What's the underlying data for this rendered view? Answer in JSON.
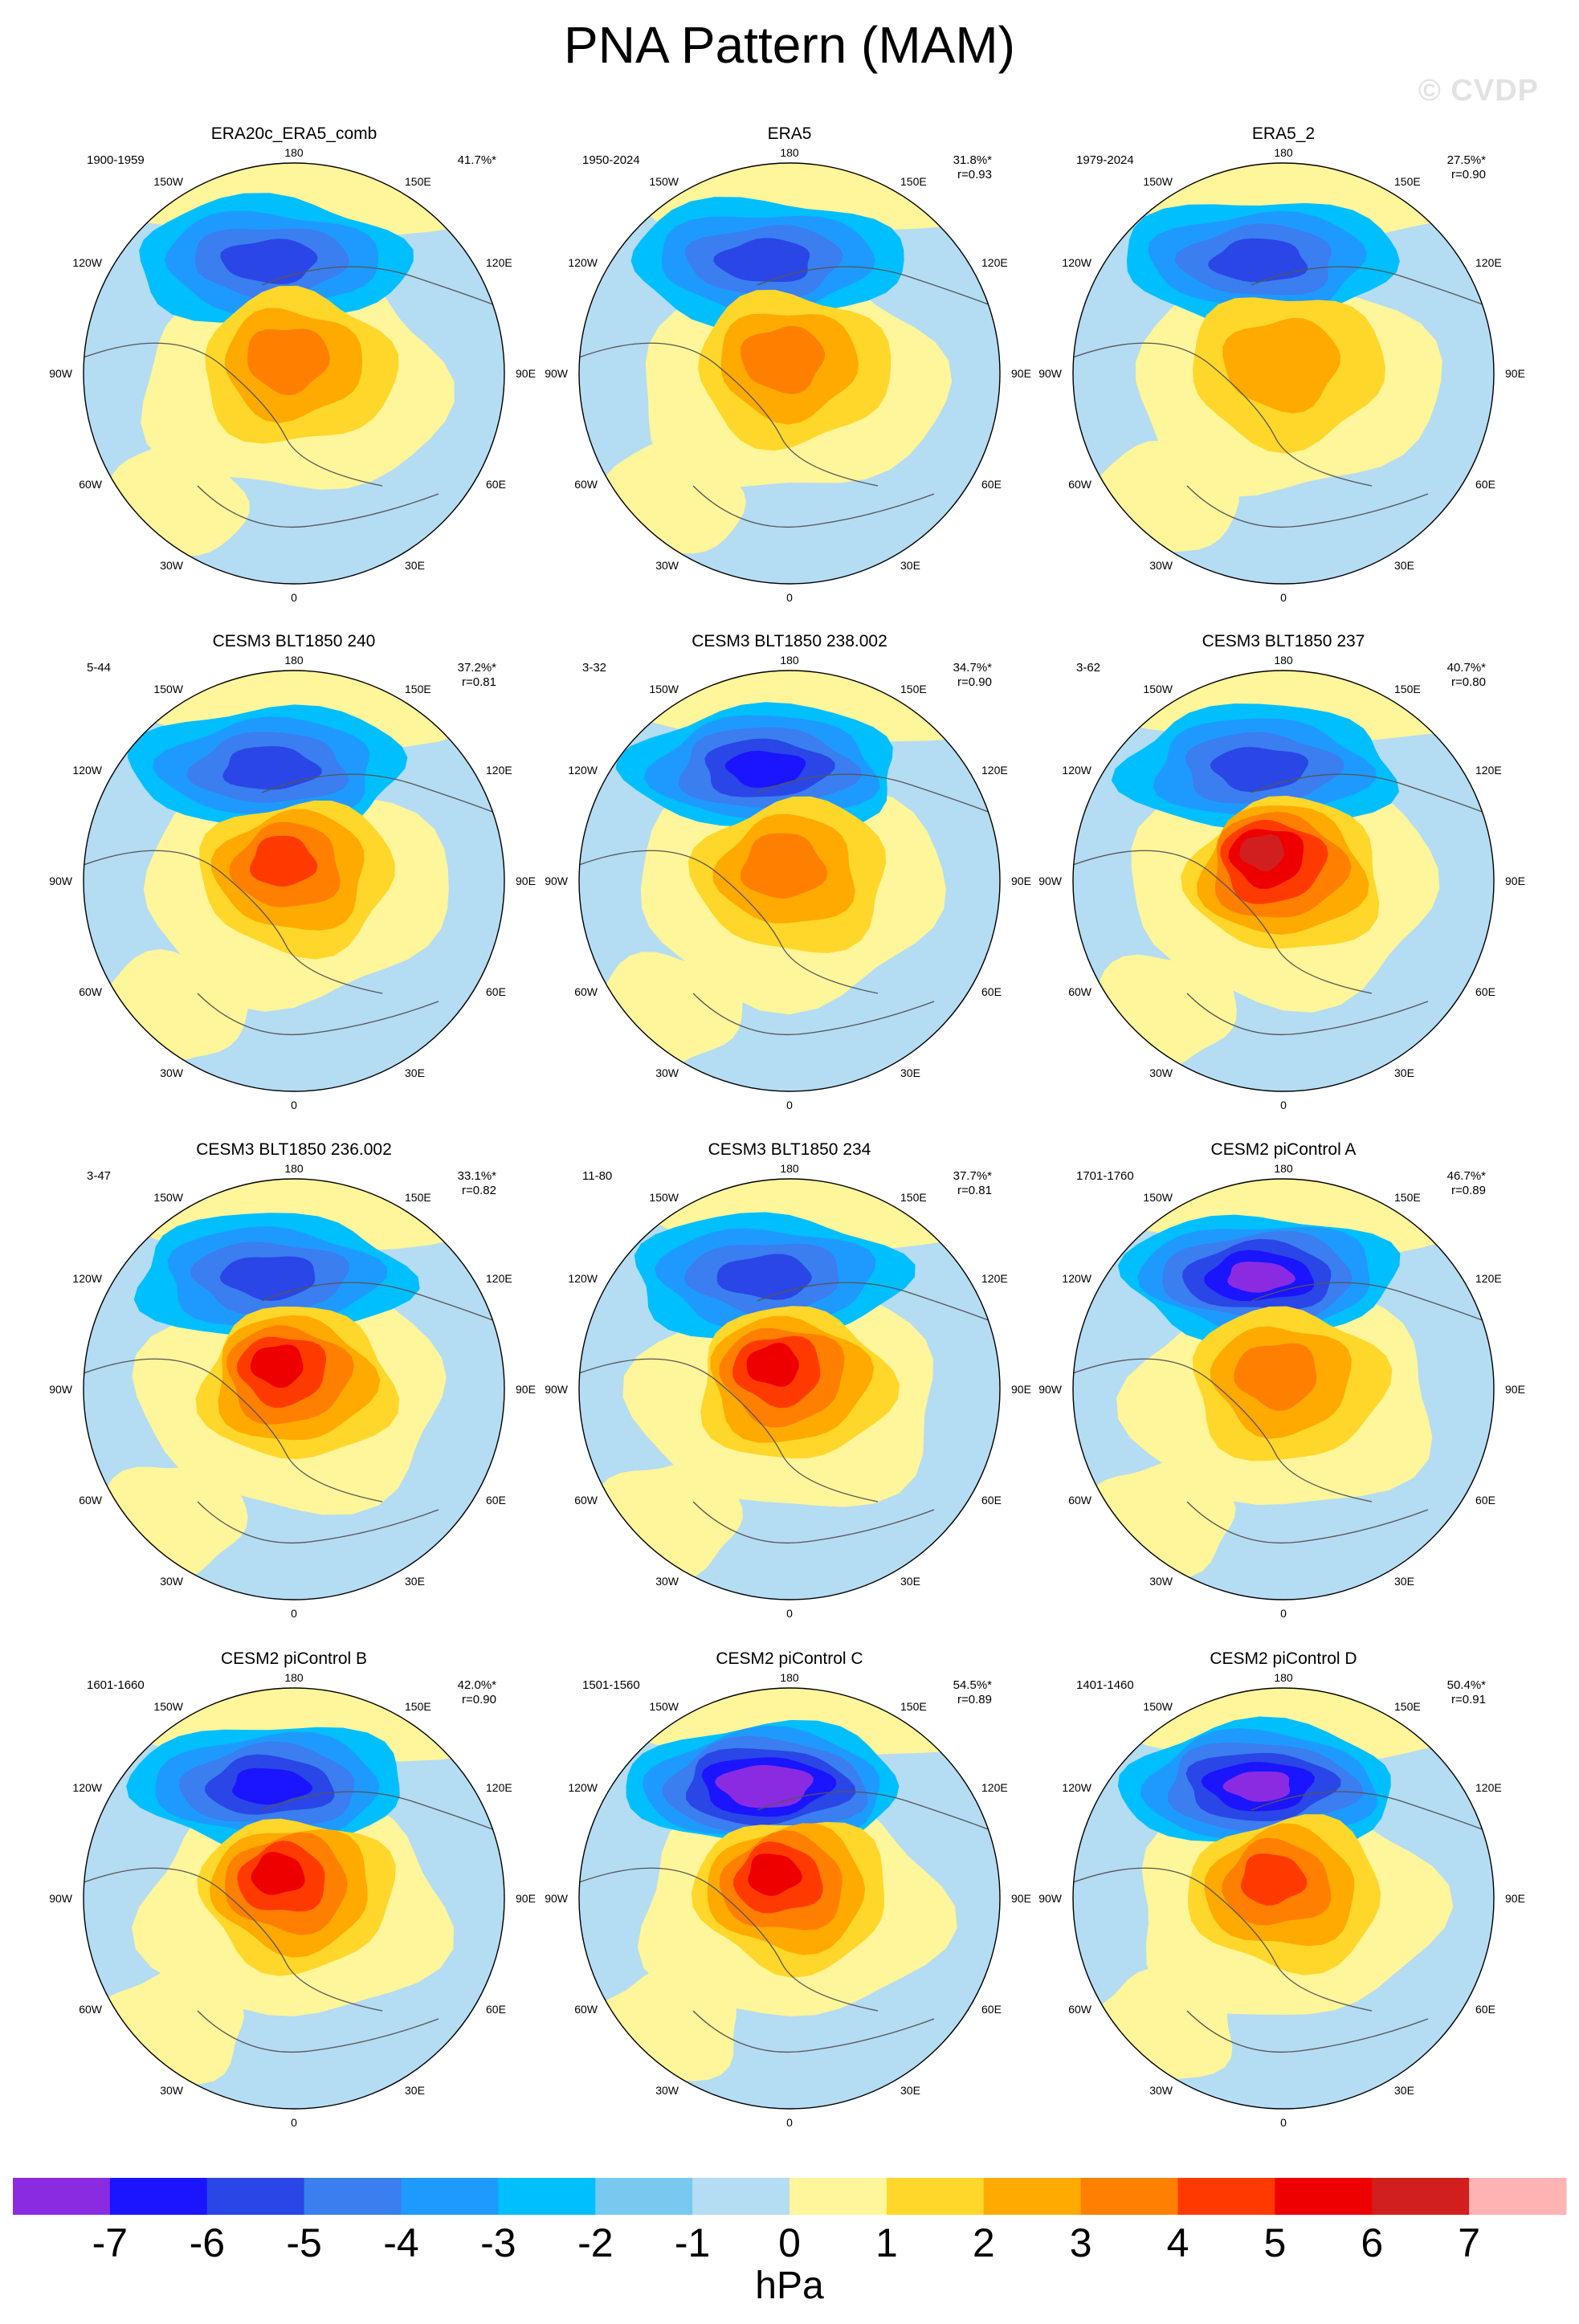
{
  "title": "PNA Pattern (MAM)",
  "watermark": "© CVDP",
  "longitude_labels": [
    "180",
    "150E",
    "120E",
    "90E",
    "60E",
    "30E",
    "0",
    "30W",
    "60W",
    "90W",
    "120W",
    "150W"
  ],
  "panels": [
    {
      "name": "ERA20c_ERA5_comb",
      "period": "1900-1959",
      "pct": "41.7%*",
      "r": "",
      "low": -4,
      "high": 3
    },
    {
      "name": "ERA5",
      "period": "1950-2024",
      "pct": "31.8%*",
      "r": "r=0.93",
      "low": -4,
      "high": 3
    },
    {
      "name": "ERA5_2",
      "period": "1979-2024",
      "pct": "27.5%*",
      "r": "r=0.90",
      "low": -4,
      "high": 2
    },
    {
      "name": "CESM3 BLT1850 240",
      "period": "5-44",
      "pct": "37.2%*",
      "r": "r=0.81",
      "low": -4,
      "high": 4
    },
    {
      "name": "CESM3 BLT1850 238.002",
      "period": "3-32",
      "pct": "34.7%*",
      "r": "r=0.90",
      "low": -5,
      "high": 3
    },
    {
      "name": "CESM3 BLT1850 237",
      "period": "3-62",
      "pct": "40.7%*",
      "r": "r=0.80",
      "low": -4,
      "high": 6
    },
    {
      "name": "CESM3 BLT1850 236.002",
      "period": "3-47",
      "pct": "33.1%*",
      "r": "r=0.82",
      "low": -4,
      "high": 5
    },
    {
      "name": "CESM3 BLT1850 234",
      "period": "11-80",
      "pct": "37.7%*",
      "r": "r=0.81",
      "low": -4,
      "high": 5
    },
    {
      "name": "CESM2 piControl A",
      "period": "1701-1760",
      "pct": "46.7%*",
      "r": "r=0.89",
      "low": -6,
      "high": 3
    },
    {
      "name": "CESM2 piControl B",
      "period": "1601-1660",
      "pct": "42.0%*",
      "r": "r=0.90",
      "low": -5,
      "high": 5
    },
    {
      "name": "CESM2 piControl C",
      "period": "1501-1560",
      "pct": "54.5%*",
      "r": "r=0.89",
      "low": -7,
      "high": 5
    },
    {
      "name": "CESM2 piControl D",
      "period": "1401-1460",
      "pct": "50.4%*",
      "r": "r=0.91",
      "low": -6,
      "high": 4
    }
  ],
  "colorbar": {
    "colors": [
      "#8a2be2",
      "#1a14ff",
      "#2a46e6",
      "#3a7ef0",
      "#1e9aff",
      "#00bfff",
      "#78c8f0",
      "#b4dcf2",
      "#fff59a",
      "#ffd72a",
      "#ffaa00",
      "#ff7f00",
      "#ff3a00",
      "#ee0000",
      "#d11f1f",
      "#ffb3b3"
    ],
    "ticks": [
      "-7",
      "-6",
      "-5",
      "-4",
      "-3",
      "-2",
      "-1",
      "0",
      "1",
      "2",
      "3",
      "4",
      "5",
      "6",
      "7"
    ],
    "unit": "hPa"
  }
}
